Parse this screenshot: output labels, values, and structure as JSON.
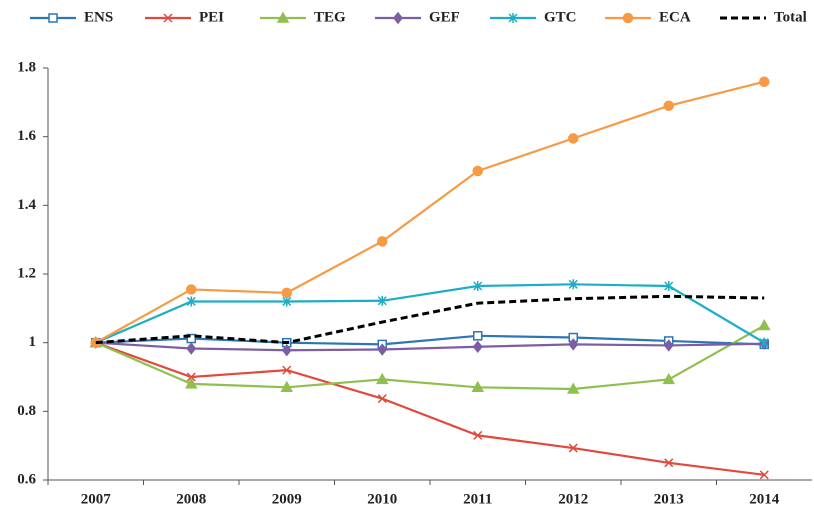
{
  "chart_data": {
    "type": "line",
    "categories": [
      "2007",
      "2008",
      "2009",
      "2010",
      "2011",
      "2012",
      "2013",
      "2014"
    ],
    "series": [
      {
        "name": "ENS",
        "color": "#2e75b6",
        "marker": "square",
        "values": [
          1,
          1.012,
          1.0,
          0.995,
          1.02,
          1.015,
          1.005,
          0.995
        ]
      },
      {
        "name": "PEI",
        "color": "#e0493c",
        "marker": "x",
        "values": [
          1,
          0.9,
          0.92,
          0.837,
          0.73,
          0.693,
          0.65,
          0.615
        ]
      },
      {
        "name": "TEG",
        "color": "#8fc04f",
        "marker": "triangle",
        "values": [
          1,
          0.88,
          0.87,
          0.893,
          0.87,
          0.865,
          0.893,
          1.05
        ]
      },
      {
        "name": "GEF",
        "color": "#7d5ea3",
        "marker": "diamond",
        "values": [
          1,
          0.983,
          0.978,
          0.98,
          0.988,
          0.995,
          0.992,
          0.997
        ]
      },
      {
        "name": "GTC",
        "color": "#1daec6",
        "marker": "asterisk",
        "values": [
          1,
          1.12,
          1.12,
          1.122,
          1.165,
          1.17,
          1.165,
          1.0
        ]
      },
      {
        "name": "ECA",
        "color": "#f79a46",
        "marker": "circle",
        "values": [
          1,
          1.155,
          1.145,
          1.295,
          1.5,
          1.595,
          1.69,
          1.76
        ]
      },
      {
        "name": "Total",
        "color": "#000000",
        "dashed": true,
        "values": [
          1,
          1.02,
          1.0,
          1.06,
          1.115,
          1.128,
          1.135,
          1.13
        ]
      }
    ],
    "ylim": [
      0.6,
      1.8
    ],
    "yticks": [
      0.6,
      0.8,
      1,
      1.2,
      1.4,
      1.6,
      1.8
    ],
    "grid": false,
    "legend": "top"
  }
}
